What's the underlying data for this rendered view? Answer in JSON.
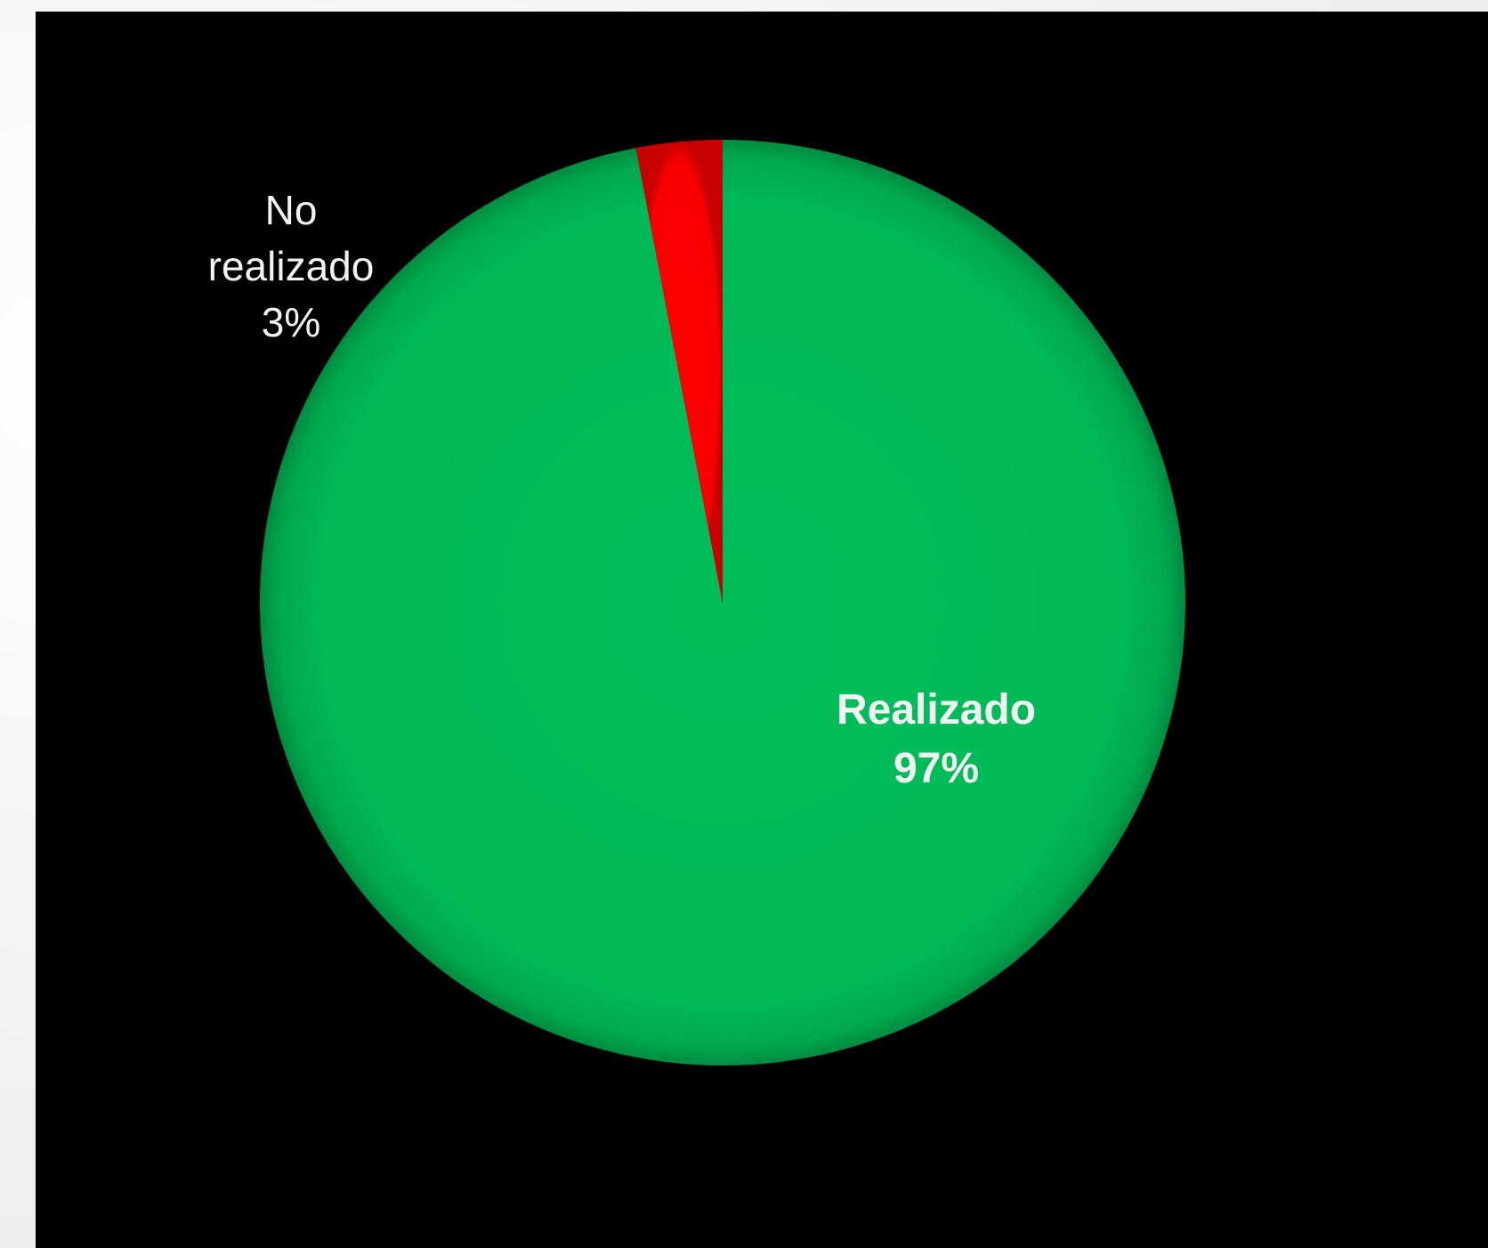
{
  "chart_data": {
    "type": "pie",
    "title": "",
    "slices": [
      {
        "name": "Realizado",
        "percent_label": "97%",
        "value": 97,
        "color": "#00b957",
        "label_style": "bold"
      },
      {
        "name": "No realizado",
        "percent_label": "3%",
        "value": 3,
        "color": "#ff0000",
        "label_style": "normal"
      }
    ],
    "start_angle": "12 o'clock",
    "direction": "counterclockwise",
    "legend": "none",
    "background": "#000000"
  }
}
